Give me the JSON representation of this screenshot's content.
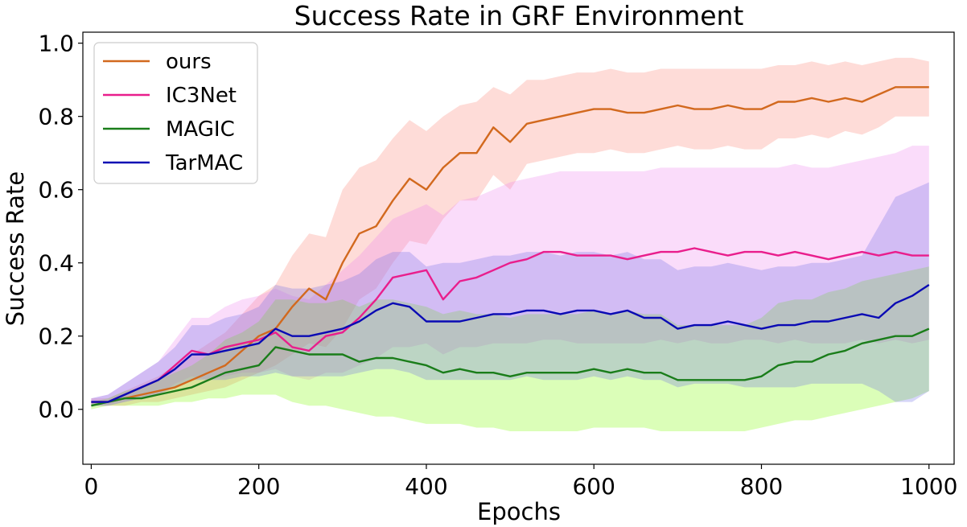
{
  "chart_data": {
    "type": "line",
    "title": "Success Rate in GRF Environment",
    "xlabel": "Epochs",
    "ylabel": "Success Rate",
    "xlim": [
      -10,
      1030
    ],
    "ylim": [
      -0.15,
      1.03
    ],
    "xticks": [
      0,
      200,
      400,
      600,
      800,
      1000
    ],
    "yticks": [
      0.0,
      0.2,
      0.4,
      0.6,
      0.8,
      1.0
    ],
    "xtick_labels": [
      "0",
      "200",
      "400",
      "600",
      "800",
      "1000"
    ],
    "ytick_labels": [
      "0.0",
      "0.2",
      "0.4",
      "0.6",
      "0.8",
      "1.0"
    ],
    "grid": false,
    "legend_position": "top-left",
    "x": [
      0,
      20,
      40,
      60,
      80,
      100,
      120,
      140,
      160,
      180,
      200,
      220,
      240,
      260,
      280,
      300,
      320,
      340,
      360,
      380,
      400,
      420,
      440,
      460,
      480,
      500,
      520,
      540,
      560,
      580,
      600,
      620,
      640,
      660,
      680,
      700,
      720,
      740,
      760,
      780,
      800,
      820,
      840,
      860,
      880,
      900,
      920,
      940,
      960,
      980,
      1000
    ],
    "series": [
      {
        "name": "ours",
        "color": "#d2691e",
        "band_color": "#fa8072",
        "values": [
          0.02,
          0.02,
          0.03,
          0.04,
          0.05,
          0.06,
          0.08,
          0.1,
          0.12,
          0.16,
          0.2,
          0.22,
          0.28,
          0.33,
          0.3,
          0.4,
          0.48,
          0.5,
          0.57,
          0.63,
          0.6,
          0.66,
          0.7,
          0.7,
          0.77,
          0.73,
          0.78,
          0.79,
          0.8,
          0.81,
          0.82,
          0.82,
          0.81,
          0.81,
          0.82,
          0.83,
          0.82,
          0.82,
          0.83,
          0.82,
          0.82,
          0.84,
          0.84,
          0.85,
          0.84,
          0.85,
          0.84,
          0.86,
          0.88,
          0.88,
          0.88
        ],
        "lower": [
          0.01,
          0.01,
          0.01,
          0.02,
          0.02,
          0.03,
          0.04,
          0.05,
          0.06,
          0.08,
          0.1,
          0.12,
          0.15,
          0.18,
          0.17,
          0.22,
          0.3,
          0.33,
          0.4,
          0.46,
          0.45,
          0.52,
          0.57,
          0.57,
          0.64,
          0.6,
          0.67,
          0.68,
          0.69,
          0.7,
          0.7,
          0.71,
          0.7,
          0.7,
          0.71,
          0.72,
          0.71,
          0.71,
          0.72,
          0.71,
          0.71,
          0.74,
          0.74,
          0.75,
          0.74,
          0.76,
          0.75,
          0.77,
          0.8,
          0.8,
          0.8
        ],
        "upper": [
          0.03,
          0.03,
          0.05,
          0.07,
          0.09,
          0.12,
          0.15,
          0.18,
          0.21,
          0.26,
          0.31,
          0.34,
          0.42,
          0.48,
          0.47,
          0.6,
          0.66,
          0.68,
          0.74,
          0.79,
          0.76,
          0.8,
          0.83,
          0.84,
          0.88,
          0.86,
          0.9,
          0.9,
          0.91,
          0.92,
          0.92,
          0.93,
          0.92,
          0.92,
          0.93,
          0.93,
          0.93,
          0.93,
          0.93,
          0.93,
          0.93,
          0.94,
          0.94,
          0.95,
          0.94,
          0.95,
          0.94,
          0.95,
          0.96,
          0.96,
          0.95
        ]
      },
      {
        "name": "IC3Net",
        "color": "#e91e8c",
        "band_color": "#ee82ee",
        "values": [
          0.02,
          0.02,
          0.04,
          0.06,
          0.08,
          0.12,
          0.16,
          0.15,
          0.17,
          0.18,
          0.19,
          0.21,
          0.17,
          0.16,
          0.2,
          0.21,
          0.25,
          0.3,
          0.36,
          0.37,
          0.38,
          0.3,
          0.35,
          0.36,
          0.38,
          0.4,
          0.41,
          0.43,
          0.43,
          0.42,
          0.42,
          0.42,
          0.41,
          0.42,
          0.43,
          0.43,
          0.44,
          0.43,
          0.42,
          0.43,
          0.43,
          0.42,
          0.43,
          0.42,
          0.41,
          0.42,
          0.43,
          0.42,
          0.43,
          0.42,
          0.42
        ],
        "lower": [
          0.01,
          0.01,
          0.02,
          0.03,
          0.04,
          0.07,
          0.09,
          0.08,
          0.09,
          0.1,
          0.1,
          0.11,
          0.09,
          0.08,
          0.1,
          0.1,
          0.12,
          0.14,
          0.17,
          0.17,
          0.18,
          0.15,
          0.17,
          0.17,
          0.18,
          0.18,
          0.18,
          0.19,
          0.19,
          0.18,
          0.18,
          0.18,
          0.18,
          0.18,
          0.19,
          0.18,
          0.19,
          0.18,
          0.18,
          0.19,
          0.19,
          0.18,
          0.19,
          0.18,
          0.18,
          0.18,
          0.19,
          0.18,
          0.19,
          0.18,
          0.19
        ],
        "upper": [
          0.03,
          0.04,
          0.07,
          0.1,
          0.13,
          0.19,
          0.25,
          0.25,
          0.28,
          0.3,
          0.31,
          0.33,
          0.31,
          0.3,
          0.34,
          0.38,
          0.42,
          0.47,
          0.52,
          0.54,
          0.56,
          0.53,
          0.57,
          0.58,
          0.6,
          0.62,
          0.63,
          0.64,
          0.65,
          0.65,
          0.65,
          0.65,
          0.65,
          0.65,
          0.66,
          0.66,
          0.66,
          0.66,
          0.66,
          0.66,
          0.66,
          0.66,
          0.67,
          0.66,
          0.66,
          0.67,
          0.68,
          0.69,
          0.7,
          0.72,
          0.72
        ]
      },
      {
        "name": "MAGIC",
        "color": "#1a7d1a",
        "band_color": "#7cfc00",
        "values": [
          0.01,
          0.02,
          0.03,
          0.03,
          0.04,
          0.05,
          0.06,
          0.08,
          0.1,
          0.11,
          0.12,
          0.17,
          0.16,
          0.15,
          0.15,
          0.15,
          0.13,
          0.14,
          0.14,
          0.13,
          0.12,
          0.1,
          0.11,
          0.1,
          0.1,
          0.09,
          0.1,
          0.1,
          0.1,
          0.1,
          0.11,
          0.1,
          0.11,
          0.1,
          0.1,
          0.08,
          0.08,
          0.08,
          0.08,
          0.08,
          0.09,
          0.12,
          0.13,
          0.13,
          0.15,
          0.16,
          0.18,
          0.19,
          0.2,
          0.2,
          0.22
        ],
        "lower": [
          0.0,
          0.01,
          0.01,
          0.01,
          0.01,
          0.02,
          0.02,
          0.03,
          0.03,
          0.04,
          0.04,
          0.04,
          0.02,
          0.01,
          0.01,
          0.0,
          -0.01,
          -0.02,
          -0.02,
          -0.03,
          -0.04,
          -0.04,
          -0.04,
          -0.05,
          -0.05,
          -0.06,
          -0.06,
          -0.06,
          -0.06,
          -0.06,
          -0.05,
          -0.05,
          -0.05,
          -0.05,
          -0.06,
          -0.06,
          -0.06,
          -0.06,
          -0.06,
          -0.06,
          -0.05,
          -0.04,
          -0.03,
          -0.03,
          -0.02,
          -0.01,
          0.0,
          0.01,
          0.02,
          0.03,
          0.05
        ],
        "upper": [
          0.02,
          0.03,
          0.05,
          0.06,
          0.08,
          0.1,
          0.12,
          0.15,
          0.19,
          0.21,
          0.24,
          0.3,
          0.3,
          0.29,
          0.29,
          0.3,
          0.28,
          0.3,
          0.3,
          0.29,
          0.28,
          0.26,
          0.27,
          0.26,
          0.26,
          0.25,
          0.26,
          0.26,
          0.26,
          0.26,
          0.27,
          0.26,
          0.27,
          0.26,
          0.26,
          0.23,
          0.23,
          0.23,
          0.23,
          0.23,
          0.25,
          0.29,
          0.3,
          0.3,
          0.32,
          0.33,
          0.35,
          0.36,
          0.37,
          0.38,
          0.39
        ]
      },
      {
        "name": "TarMAC",
        "color": "#0a0ab4",
        "band_color": "#6a6ae6",
        "values": [
          0.02,
          0.02,
          0.04,
          0.06,
          0.08,
          0.11,
          0.15,
          0.15,
          0.16,
          0.17,
          0.18,
          0.22,
          0.2,
          0.2,
          0.21,
          0.22,
          0.24,
          0.27,
          0.29,
          0.28,
          0.24,
          0.24,
          0.24,
          0.25,
          0.26,
          0.26,
          0.27,
          0.27,
          0.26,
          0.27,
          0.27,
          0.26,
          0.27,
          0.25,
          0.25,
          0.22,
          0.23,
          0.23,
          0.24,
          0.23,
          0.22,
          0.23,
          0.23,
          0.24,
          0.24,
          0.25,
          0.26,
          0.25,
          0.29,
          0.31,
          0.34
        ],
        "lower": [
          0.01,
          0.01,
          0.02,
          0.03,
          0.04,
          0.06,
          0.08,
          0.08,
          0.08,
          0.09,
          0.09,
          0.1,
          0.09,
          0.09,
          0.09,
          0.09,
          0.1,
          0.11,
          0.11,
          0.1,
          0.08,
          0.08,
          0.08,
          0.08,
          0.08,
          0.08,
          0.09,
          0.08,
          0.08,
          0.08,
          0.09,
          0.08,
          0.09,
          0.08,
          0.08,
          0.06,
          0.07,
          0.07,
          0.07,
          0.06,
          0.06,
          0.06,
          0.06,
          0.07,
          0.07,
          0.07,
          0.07,
          0.05,
          0.02,
          0.02,
          0.05
        ],
        "upper": [
          0.03,
          0.04,
          0.07,
          0.1,
          0.13,
          0.17,
          0.23,
          0.23,
          0.25,
          0.26,
          0.28,
          0.34,
          0.33,
          0.33,
          0.34,
          0.35,
          0.37,
          0.41,
          0.43,
          0.43,
          0.39,
          0.4,
          0.4,
          0.41,
          0.42,
          0.42,
          0.43,
          0.43,
          0.42,
          0.43,
          0.43,
          0.42,
          0.43,
          0.41,
          0.41,
          0.38,
          0.39,
          0.39,
          0.4,
          0.39,
          0.38,
          0.39,
          0.39,
          0.4,
          0.4,
          0.41,
          0.42,
          0.5,
          0.58,
          0.6,
          0.62
        ]
      }
    ]
  }
}
